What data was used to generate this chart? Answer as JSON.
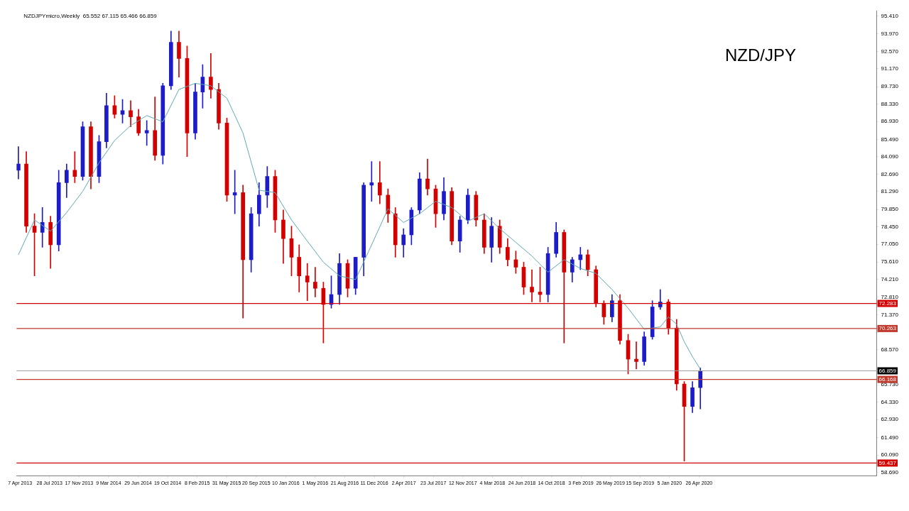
{
  "chart_data": {
    "type": "candlestick",
    "x": [
      "2013-04",
      "2013-05",
      "2013-06",
      "2013-07",
      "2013-08",
      "2013-09",
      "2013-10",
      "2013-11",
      "2013-12",
      "2014-01",
      "2014-02",
      "2014-03",
      "2014-04",
      "2014-05",
      "2014-06",
      "2014-07",
      "2014-08",
      "2014-09",
      "2014-10",
      "2014-11",
      "2014-12",
      "2015-01",
      "2015-02",
      "2015-03",
      "2015-04",
      "2015-05",
      "2015-06",
      "2015-07",
      "2015-08",
      "2015-09",
      "2015-10",
      "2015-11",
      "2015-12",
      "2016-01",
      "2016-02",
      "2016-03",
      "2016-04",
      "2016-05",
      "2016-06",
      "2016-07",
      "2016-08",
      "2016-09",
      "2016-10",
      "2016-11",
      "2016-12",
      "2017-01",
      "2017-02",
      "2017-03",
      "2017-04",
      "2017-05",
      "2017-06",
      "2017-07",
      "2017-08",
      "2017-09",
      "2017-10",
      "2017-11",
      "2017-12",
      "2018-01",
      "2018-02",
      "2018-03",
      "2018-04",
      "2018-05",
      "2018-06",
      "2018-07",
      "2018-08",
      "2018-09",
      "2018-10",
      "2018-11",
      "2018-12",
      "2019-01",
      "2019-02",
      "2019-03",
      "2019-04",
      "2019-05",
      "2019-06",
      "2019-07",
      "2019-08",
      "2019-09",
      "2019-10",
      "2019-11",
      "2019-12",
      "2020-01",
      "2020-02",
      "2020-03",
      "2020-04",
      "2020-05"
    ],
    "ohlc": [
      [
        83.0,
        84.9,
        82.3,
        83.5
      ],
      [
        83.5,
        84.5,
        78.0,
        78.5
      ],
      [
        78.5,
        79.5,
        74.5,
        78.0
      ],
      [
        78.0,
        80.0,
        76.8,
        78.8
      ],
      [
        78.8,
        79.3,
        75.1,
        77.0
      ],
      [
        77.0,
        83.0,
        76.5,
        82.0
      ],
      [
        82.0,
        83.5,
        80.8,
        83.0
      ],
      [
        83.0,
        84.5,
        82.0,
        82.5
      ],
      [
        82.5,
        86.9,
        82.2,
        86.5
      ],
      [
        86.5,
        86.9,
        81.5,
        82.5
      ],
      [
        82.5,
        85.8,
        82.0,
        85.3
      ],
      [
        85.3,
        89.2,
        84.8,
        88.2
      ],
      [
        88.2,
        89.0,
        87.2,
        87.5
      ],
      [
        87.5,
        88.7,
        86.8,
        87.8
      ],
      [
        87.8,
        88.6,
        86.5,
        87.3
      ],
      [
        87.3,
        87.9,
        85.8,
        86.0
      ],
      [
        86.0,
        87.0,
        85.0,
        86.2
      ],
      [
        86.2,
        88.9,
        83.8,
        84.2
      ],
      [
        84.2,
        90.0,
        83.5,
        89.8
      ],
      [
        89.8,
        94.2,
        89.5,
        93.3
      ],
      [
        93.3,
        94.2,
        90.5,
        92.0
      ],
      [
        92.0,
        93.0,
        84.1,
        86.0
      ],
      [
        86.0,
        90.0,
        85.5,
        89.3
      ],
      [
        89.3,
        91.5,
        88.0,
        90.5
      ],
      [
        90.5,
        92.4,
        88.8,
        89.5
      ],
      [
        89.5,
        90.0,
        86.3,
        86.8
      ],
      [
        86.8,
        87.2,
        80.5,
        81.0
      ],
      [
        81.0,
        83.0,
        79.5,
        81.2
      ],
      [
        81.2,
        81.8,
        71.1,
        75.8
      ],
      [
        75.8,
        80.0,
        74.8,
        79.5
      ],
      [
        79.5,
        82.0,
        78.5,
        81.0
      ],
      [
        81.0,
        83.3,
        80.0,
        82.5
      ],
      [
        82.5,
        83.0,
        78.0,
        79.0
      ],
      [
        79.0,
        79.8,
        75.5,
        77.5
      ],
      [
        77.5,
        78.5,
        74.5,
        76.0
      ],
      [
        76.0,
        77.0,
        73.2,
        74.5
      ],
      [
        74.5,
        75.5,
        72.5,
        74.0
      ],
      [
        74.0,
        75.2,
        72.8,
        73.5
      ],
      [
        73.5,
        74.0,
        69.1,
        72.2
      ],
      [
        72.2,
        74.5,
        71.9,
        73.0
      ],
      [
        73.0,
        76.3,
        72.2,
        75.5
      ],
      [
        75.5,
        75.8,
        72.8,
        73.5
      ],
      [
        73.5,
        76.0,
        73.0,
        76.0
      ],
      [
        76.0,
        82.0,
        74.5,
        81.8
      ],
      [
        81.8,
        83.7,
        80.5,
        82.0
      ],
      [
        82.0,
        83.7,
        80.3,
        81.0
      ],
      [
        81.0,
        81.5,
        78.8,
        79.5
      ],
      [
        79.5,
        80.0,
        76.0,
        77.0
      ],
      [
        77.0,
        78.3,
        76.0,
        77.8
      ],
      [
        77.8,
        80.0,
        77.0,
        79.8
      ],
      [
        79.8,
        82.8,
        79.5,
        82.3
      ],
      [
        82.3,
        83.9,
        81.0,
        81.5
      ],
      [
        81.5,
        81.8,
        78.4,
        79.5
      ],
      [
        79.5,
        82.4,
        79.0,
        81.3
      ],
      [
        81.3,
        81.6,
        77.0,
        77.3
      ],
      [
        77.3,
        79.3,
        76.4,
        79.0
      ],
      [
        79.0,
        81.5,
        78.7,
        81.0
      ],
      [
        81.0,
        81.3,
        78.5,
        79.0
      ],
      [
        79.0,
        79.5,
        76.3,
        76.8
      ],
      [
        76.8,
        79.2,
        75.6,
        78.5
      ],
      [
        78.5,
        79.0,
        76.3,
        76.8
      ],
      [
        76.8,
        77.5,
        75.3,
        75.8
      ],
      [
        75.8,
        76.5,
        74.7,
        75.2
      ],
      [
        75.2,
        75.6,
        73.0,
        73.6
      ],
      [
        73.6,
        75.0,
        72.4,
        73.2
      ],
      [
        73.2,
        75.2,
        72.4,
        73.0
      ],
      [
        73.0,
        76.8,
        72.4,
        76.3
      ],
      [
        76.3,
        78.8,
        76.0,
        78.0
      ],
      [
        78.0,
        78.2,
        69.1,
        74.8
      ],
      [
        74.8,
        76.0,
        74.0,
        75.8
      ],
      [
        75.8,
        76.8,
        75.0,
        76.2
      ],
      [
        76.2,
        76.6,
        74.5,
        75.0
      ],
      [
        75.0,
        75.3,
        72.0,
        72.3
      ],
      [
        72.3,
        72.5,
        70.6,
        71.2
      ],
      [
        71.2,
        73.0,
        70.8,
        72.5
      ],
      [
        72.5,
        73.0,
        69.0,
        69.3
      ],
      [
        69.3,
        69.8,
        66.6,
        67.8
      ],
      [
        67.8,
        69.2,
        67.0,
        67.6
      ],
      [
        67.6,
        70.0,
        67.3,
        69.6
      ],
      [
        69.6,
        72.5,
        69.4,
        72.0
      ],
      [
        72.0,
        73.4,
        71.8,
        72.4
      ],
      [
        72.4,
        72.6,
        69.8,
        70.3
      ],
      [
        70.3,
        71.0,
        65.3,
        65.8
      ],
      [
        65.8,
        66.0,
        59.6,
        64.0
      ],
      [
        64.0,
        66.0,
        63.5,
        65.5
      ],
      [
        65.5,
        67.1,
        63.8,
        66.859
      ]
    ],
    "colors": [
      "#1c1cc8",
      "#d40000",
      "#d40000",
      "#1c1cc8",
      "#d40000",
      "#1c1cc8",
      "#1c1cc8",
      "#d40000",
      "#1c1cc8",
      "#d40000",
      "#1c1cc8",
      "#1c1cc8",
      "#d40000",
      "#1c1cc8",
      "#d40000",
      "#d40000",
      "#1c1cc8",
      "#d40000",
      "#1c1cc8",
      "#1c1cc8",
      "#d40000",
      "#d40000",
      "#1c1cc8",
      "#1c1cc8",
      "#d40000",
      "#d40000",
      "#d40000",
      "#1c1cc8",
      "#d40000",
      "#1c1cc8",
      "#1c1cc8",
      "#1c1cc8",
      "#d40000",
      "#d40000",
      "#d40000",
      "#d40000",
      "#d40000",
      "#d40000",
      "#d40000",
      "#1c1cc8",
      "#1c1cc8",
      "#d40000",
      "#1c1cc8",
      "#1c1cc8",
      "#1c1cc8",
      "#d40000",
      "#d40000",
      "#d40000",
      "#1c1cc8",
      "#1c1cc8",
      "#1c1cc8",
      "#d40000",
      "#d40000",
      "#1c1cc8",
      "#d40000",
      "#1c1cc8",
      "#1c1cc8",
      "#d40000",
      "#d40000",
      "#1c1cc8",
      "#d40000",
      "#d40000",
      "#d40000",
      "#d40000",
      "#d40000",
      "#d40000",
      "#1c1cc8",
      "#1c1cc8",
      "#d40000",
      "#1c1cc8",
      "#1c1cc8",
      "#d40000",
      "#d40000",
      "#d40000",
      "#1c1cc8",
      "#d40000",
      "#d40000",
      "#d40000",
      "#1c1cc8",
      "#1c1cc8",
      "#1c1cc8",
      "#d40000",
      "#d40000",
      "#d40000",
      "#1c1cc8",
      "#1c1cc8"
    ],
    "series": [
      {
        "type": "line",
        "color": "#5fa9b5",
        "x": [
          "2013-04",
          "2013-06",
          "2013-08",
          "2013-10",
          "2013-12",
          "2014-02",
          "2014-04",
          "2014-06",
          "2014-08",
          "2014-10",
          "2014-12",
          "2015-02",
          "2015-04",
          "2015-06",
          "2015-08",
          "2015-10",
          "2015-12",
          "2016-02",
          "2016-04",
          "2016-06",
          "2016-08",
          "2016-10",
          "2016-12",
          "2017-02",
          "2017-04",
          "2017-06",
          "2017-08",
          "2017-10",
          "2017-12",
          "2018-02",
          "2018-04",
          "2018-06",
          "2018-08",
          "2018-10",
          "2018-12",
          "2019-02",
          "2019-04",
          "2019-06",
          "2019-08",
          "2019-10",
          "2019-12",
          "2020-01",
          "2020-02",
          "2020-03",
          "2020-04",
          "2020-05"
        ],
        "values": [
          76.2,
          79.0,
          78.1,
          79.6,
          81.3,
          83.6,
          85.4,
          86.6,
          87.4,
          86.9,
          89.5,
          90.0,
          89.8,
          88.8,
          86.0,
          81.4,
          81.2,
          79.0,
          77.3,
          75.6,
          74.5,
          74.2,
          77.0,
          79.9,
          78.8,
          79.5,
          80.5,
          80.0,
          78.9,
          79.5,
          78.3,
          77.2,
          76.1,
          74.8,
          75.8,
          75.1,
          74.7,
          73.4,
          71.9,
          70.2,
          70.4,
          71.2,
          70.6,
          69.2,
          68.0,
          67.0
        ]
      }
    ],
    "ref_lines": [
      {
        "axis": "y",
        "value": 72.283,
        "label": "72.283",
        "color": "#d40000"
      },
      {
        "axis": "y",
        "value": 70.263,
        "label": "70.263",
        "color": "#c0392b"
      },
      {
        "axis": "y",
        "value": 66.168,
        "label": "66.168",
        "color": "#c0392b"
      },
      {
        "axis": "y",
        "value": 59.437,
        "label": "59.437",
        "color": "#d40000"
      },
      {
        "axis": "y",
        "value": 66.859,
        "label": "66.859",
        "color": "#a0a0a0"
      }
    ],
    "annotations": [
      "NZDJPYmicro,Weekly  65.552 67.115 65.466 66.859",
      "NZD/JPY"
    ],
    "xlim": [
      "2013-03-25",
      "2022-03-01"
    ],
    "xticks": [
      {
        "value": "2013-04-07",
        "label": "7 Apr 2013"
      },
      {
        "value": "2013-07-28",
        "label": "28 Jul 2013"
      },
      {
        "value": "2013-11-17",
        "label": "17 Nov 2013"
      },
      {
        "value": "2014-03-09",
        "label": "9 Mar 2014"
      },
      {
        "value": "2014-06-29",
        "label": "29 Jun 2014"
      },
      {
        "value": "2014-10-19",
        "label": "19 Oct 2014"
      },
      {
        "value": "2015-02-08",
        "label": "8 Feb 2015"
      },
      {
        "value": "2015-05-31",
        "label": "31 May 2015"
      },
      {
        "value": "2015-09-20",
        "label": "20 Sep 2015"
      },
      {
        "value": "2016-01-10",
        "label": "10 Jan 2016"
      },
      {
        "value": "2016-05-01",
        "label": "1 May 2016"
      },
      {
        "value": "2016-08-21",
        "label": "21 Aug 2016"
      },
      {
        "value": "2016-12-11",
        "label": "11 Dec 2016"
      },
      {
        "value": "2017-04-02",
        "label": "2 Apr 2017"
      },
      {
        "value": "2017-07-23",
        "label": "23 Jul 2017"
      },
      {
        "value": "2017-11-12",
        "label": "12 Nov 2017"
      },
      {
        "value": "2018-03-04",
        "label": "4 Mar 2018"
      },
      {
        "value": "2018-06-24",
        "label": "24 Jun 2018"
      },
      {
        "value": "2018-10-14",
        "label": "14 Oct 2018"
      },
      {
        "value": "2019-02-03",
        "label": "3 Feb 2019"
      },
      {
        "value": "2019-05-26",
        "label": "26 May 2019"
      },
      {
        "value": "2019-09-15",
        "label": "15 Sep 2019"
      },
      {
        "value": "2020-01-05",
        "label": "5 Jan 2020"
      },
      {
        "value": "2020-04-26",
        "label": "26 Apr 2020"
      }
    ],
    "ylim": [
      58.4,
      95.8
    ],
    "yticks": [
      {
        "value": 95.41,
        "label": "95.410"
      },
      {
        "value": 93.97,
        "label": "93.970"
      },
      {
        "value": 92.57,
        "label": "92.570"
      },
      {
        "value": 91.17,
        "label": "91.170"
      },
      {
        "value": 89.73,
        "label": "89.730"
      },
      {
        "value": 88.33,
        "label": "88.330"
      },
      {
        "value": 86.93,
        "label": "86.930"
      },
      {
        "value": 85.49,
        "label": "85.490"
      },
      {
        "value": 84.09,
        "label": "84.090"
      },
      {
        "value": 82.69,
        "label": "82.690"
      },
      {
        "value": 81.29,
        "label": "81.290"
      },
      {
        "value": 79.85,
        "label": "79.850"
      },
      {
        "value": 78.45,
        "label": "78.450"
      },
      {
        "value": 77.05,
        "label": "77.050"
      },
      {
        "value": 75.61,
        "label": "75.610"
      },
      {
        "value": 74.21,
        "label": "74.210"
      },
      {
        "value": 72.81,
        "label": "72.810"
      },
      {
        "value": 71.37,
        "label": "71.370"
      },
      {
        "value": 69.97,
        "label": null
      },
      {
        "value": 68.57,
        "label": "68.570"
      },
      {
        "value": 67.17,
        "label": null
      },
      {
        "value": 65.73,
        "label": "65.730"
      },
      {
        "value": 64.33,
        "label": "64.330"
      },
      {
        "value": 62.93,
        "label": "62.930"
      },
      {
        "value": 61.49,
        "label": "61.490"
      },
      {
        "value": 60.09,
        "label": "60.090"
      },
      {
        "value": 58.69,
        "label": "58.690"
      }
    ]
  }
}
